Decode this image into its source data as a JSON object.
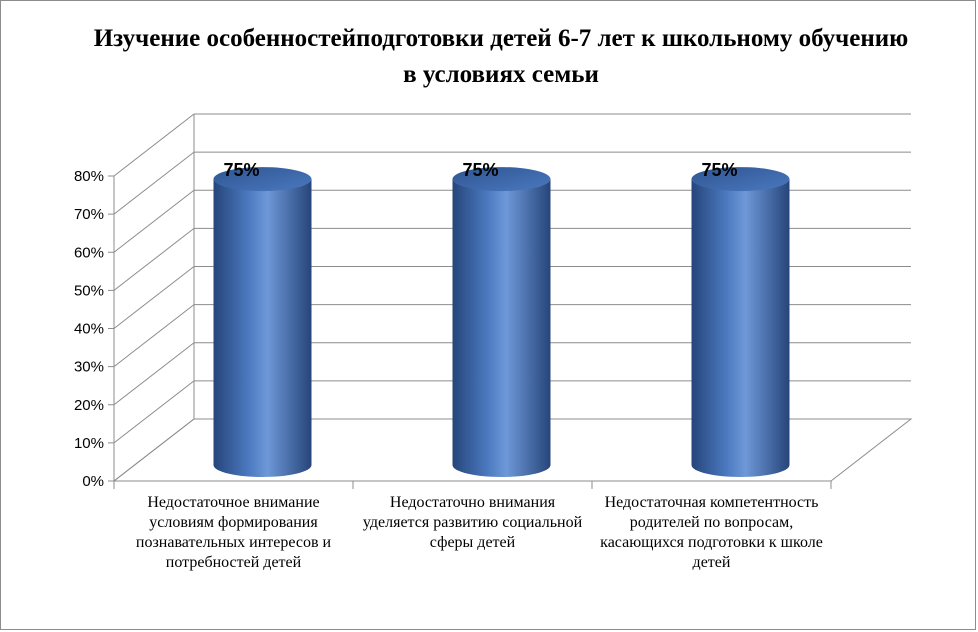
{
  "chart_data": {
    "type": "bar",
    "title": "Изучение особенностейподготовки детей 6-7 лет к школьному обучению в условиях семьи",
    "categories": [
      "Недостаточное внимание условиям формирования познавательных интересов и потребностей детей",
      "Недостаточно внимания уделяется развитию социальной сферы детей",
      "Недостаточная компетентность родителей по вопросам, касающихся подготовки к школе детей"
    ],
    "values": [
      75,
      75,
      75
    ],
    "data_labels": [
      "75%",
      "75%",
      "75%"
    ],
    "ylim": [
      0,
      80
    ],
    "yticks": [
      "0%",
      "10%",
      "20%",
      "30%",
      "40%",
      "50%",
      "60%",
      "70%",
      "80%"
    ],
    "grid": true,
    "bar_shape": "cylinder",
    "colors": {
      "bar": "#4a78bf",
      "bar_dark": "#26457a",
      "grid": "#8c8c8c"
    }
  }
}
